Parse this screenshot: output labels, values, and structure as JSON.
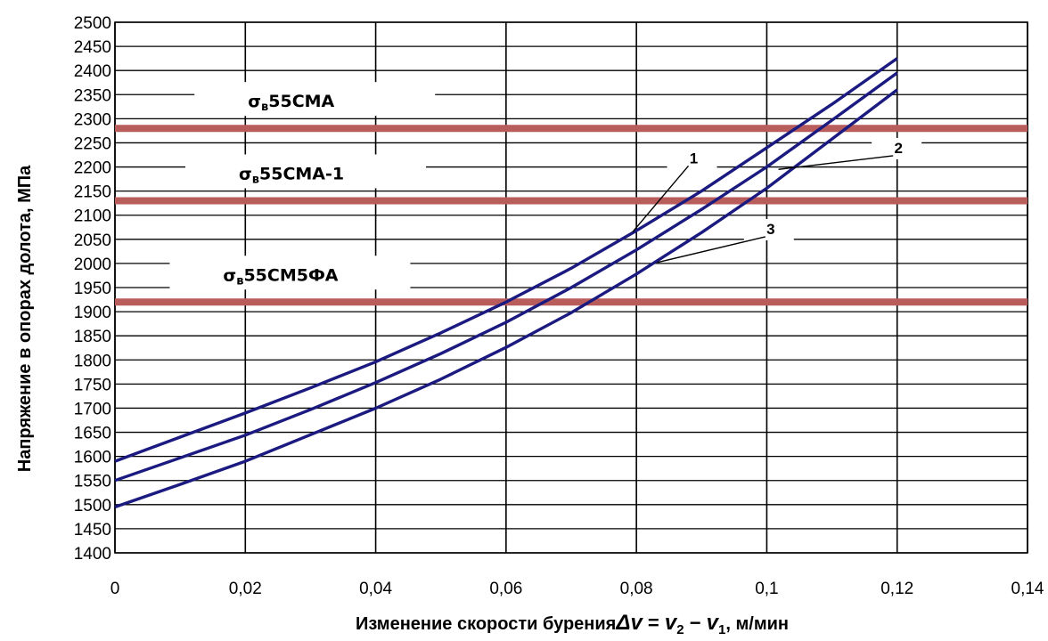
{
  "chart_data": {
    "type": "line",
    "xlabel": {
      "prefix": "Изменение скорости бурения",
      "formula_delta": "Δ",
      "formula_v": "v",
      "formula_eq": " = ",
      "formula_sub2": "2",
      "formula_minus": " − ",
      "formula_sub1": "1",
      "suffix": ", м/мин"
    },
    "ylabel": "Напряжение в опорах долота, МПа",
    "xlim": [
      0,
      0.14
    ],
    "ylim": [
      1400,
      2500
    ],
    "x_ticks": [
      0,
      0.02,
      0.04,
      0.06,
      0.08,
      0.1,
      0.12,
      0.14
    ],
    "x_tick_labels": [
      "0",
      "0,02",
      "0,04",
      "0,06",
      "0,08",
      "0,1",
      "0,12",
      "0,14"
    ],
    "y_ticks": [
      1400,
      1450,
      1500,
      1550,
      1600,
      1650,
      1700,
      1750,
      1800,
      1850,
      1900,
      1950,
      2000,
      2050,
      2100,
      2150,
      2200,
      2250,
      2300,
      2350,
      2400,
      2450,
      2500
    ],
    "grid": true,
    "series": [
      {
        "name": "1",
        "color": "#1a1a80",
        "x": [
          0,
          0.01,
          0.02,
          0.03,
          0.04,
          0.05,
          0.06,
          0.07,
          0.08,
          0.09,
          0.1,
          0.11,
          0.12
        ],
        "y": [
          1590,
          1640,
          1690,
          1742,
          1796,
          1856,
          1920,
          1990,
          2068,
          2150,
          2240,
          2330,
          2425
        ]
      },
      {
        "name": "2",
        "color": "#1a1a80",
        "x": [
          0,
          0.01,
          0.02,
          0.03,
          0.04,
          0.05,
          0.06,
          0.07,
          0.08,
          0.09,
          0.1,
          0.11,
          0.12
        ],
        "y": [
          1550,
          1597,
          1644,
          1697,
          1753,
          1813,
          1878,
          1950,
          2028,
          2112,
          2200,
          2297,
          2395
        ]
      },
      {
        "name": "3",
        "color": "#1a1a80",
        "x": [
          0,
          0.01,
          0.02,
          0.03,
          0.04,
          0.05,
          0.06,
          0.07,
          0.08,
          0.09,
          0.1,
          0.11,
          0.12
        ],
        "y": [
          1495,
          1542,
          1590,
          1645,
          1700,
          1760,
          1826,
          1898,
          1978,
          2064,
          2156,
          2258,
          2360
        ]
      }
    ],
    "hlines": [
      {
        "y": 2280,
        "color": "#b85c5c",
        "label_main": "σ",
        "label_sub": "в",
        "label_rest": "55СМА",
        "label_x": 0.0204
      },
      {
        "y": 2130,
        "color": "#b85c5c",
        "label_main": "σ",
        "label_sub": "в",
        "label_rest": "55СМА-1",
        "label_x": 0.019
      },
      {
        "y": 1920,
        "color": "#b85c5c",
        "label_main": "σ",
        "label_sub": "в",
        "label_rest": "55СМ5ФА",
        "label_x": 0.0166
      }
    ],
    "curve_labels": [
      {
        "text": "1",
        "x": 0.0888,
        "y": 2217,
        "to_x": 0.0794,
        "to_y": 2065
      },
      {
        "text": "2",
        "x": 0.1202,
        "y": 2238,
        "to_x": 0.1018,
        "to_y": 2195
      },
      {
        "text": "3",
        "x": 0.1006,
        "y": 2070,
        "to_x": 0.0832,
        "to_y": 2002
      }
    ]
  }
}
